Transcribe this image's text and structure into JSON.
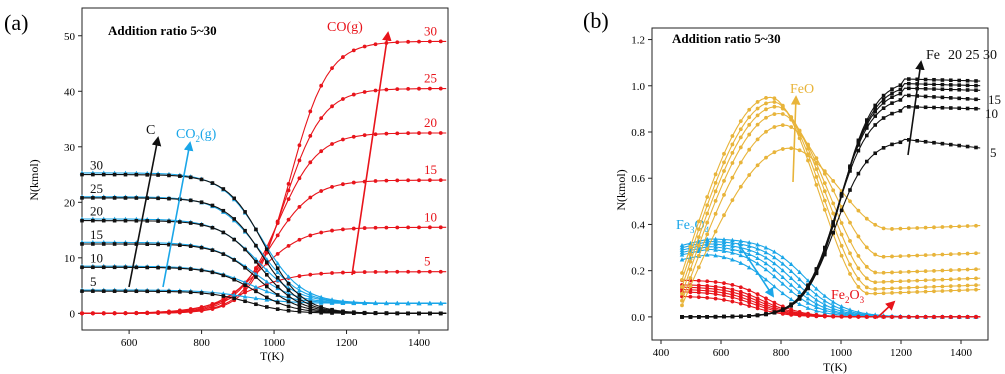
{
  "chart_data": [
    {
      "type": "line",
      "panel_label": "(a)",
      "annotation": "Addition ratio 5~30",
      "xlabel": "T(K)",
      "ylabel": "N(kmol)",
      "xlim": [
        470,
        1480
      ],
      "ylim": [
        -3,
        55
      ],
      "x_ticks": [
        600,
        800,
        1000,
        1200,
        1400
      ],
      "y_ticks": [
        0,
        10,
        20,
        30,
        40,
        50
      ],
      "grid": false,
      "groups": [
        {
          "name": "CO(g)",
          "color": "#e8141b",
          "labels": [
            "5",
            "10",
            "15",
            "20",
            "25",
            "30"
          ],
          "series": [
            {
              "name": "5",
              "plateau": 7.5,
              "midpoint_K": 920,
              "width_K": 70
            },
            {
              "name": "10",
              "plateau": 15.5,
              "midpoint_K": 960,
              "width_K": 62
            },
            {
              "name": "15",
              "plateau": 24,
              "midpoint_K": 990,
              "width_K": 58
            },
            {
              "name": "20",
              "plateau": 32.5,
              "midpoint_K": 1010,
              "width_K": 55
            },
            {
              "name": "25",
              "plateau": 40.5,
              "midpoint_K": 1030,
              "width_K": 53
            },
            {
              "name": "30",
              "plateau": 49,
              "midpoint_K": 1045,
              "width_K": 52
            }
          ]
        },
        {
          "name": "CO2(g)",
          "color": "#1aa6e8",
          "labels": [
            "5",
            "10",
            "15",
            "20",
            "25",
            "30"
          ],
          "series": [
            {
              "name": "5",
              "start": 4.2,
              "end": 1.8,
              "midpoint_K": 920,
              "width_K": 60
            },
            {
              "name": "10",
              "start": 8.5,
              "end": 1.8,
              "midpoint_K": 935,
              "width_K": 60
            },
            {
              "name": "15",
              "start": 12.8,
              "end": 1.8,
              "midpoint_K": 945,
              "width_K": 58
            },
            {
              "name": "20",
              "start": 17,
              "end": 1.8,
              "midpoint_K": 955,
              "width_K": 57
            },
            {
              "name": "25",
              "start": 21,
              "end": 1.8,
              "midpoint_K": 960,
              "width_K": 56
            },
            {
              "name": "30",
              "start": 25.3,
              "end": 1.8,
              "midpoint_K": 965,
              "width_K": 55
            }
          ]
        },
        {
          "name": "C",
          "color": "#111111",
          "labels": [
            "5",
            "10",
            "15",
            "20",
            "25",
            "30"
          ],
          "series": [
            {
              "name": "5",
              "start": 4.0,
              "end": 0,
              "midpoint_K": 930,
              "width_K": 55
            },
            {
              "name": "10",
              "start": 8.3,
              "end": 0,
              "midpoint_K": 945,
              "width_K": 55
            },
            {
              "name": "15",
              "start": 12.5,
              "end": 0,
              "midpoint_K": 955,
              "width_K": 54
            },
            {
              "name": "20",
              "start": 16.7,
              "end": 0,
              "midpoint_K": 962,
              "width_K": 53
            },
            {
              "name": "25",
              "start": 20.8,
              "end": 0,
              "midpoint_K": 968,
              "width_K": 52
            },
            {
              "name": "30",
              "start": 25,
              "end": 0,
              "midpoint_K": 972,
              "width_K": 52
            }
          ]
        }
      ],
      "label_texts": {
        "co": "CO(g)",
        "co2_main": "CO",
        "co2_sub": "2",
        "co2_tail": "(g)",
        "c": "C"
      }
    },
    {
      "type": "line",
      "panel_label": "(b)",
      "annotation": "Addition ratio 5~30",
      "xlabel": "T(K)",
      "ylabel": "N(kmol)",
      "xlim": [
        370,
        1490
      ],
      "ylim": [
        -0.1,
        1.25
      ],
      "x_ticks": [
        400,
        600,
        800,
        1000,
        1200,
        1400
      ],
      "y_ticks": [
        0.0,
        0.2,
        0.4,
        0.6,
        0.8,
        1.0,
        1.2
      ],
      "grid": false,
      "groups": [
        {
          "name": "Fe",
          "color": "#111111",
          "labels": [
            "5",
            "10",
            "15",
            "20",
            "25",
            "30"
          ],
          "series": [
            {
              "name": "5",
              "plateau": 0.77,
              "end": 0.73,
              "midpoint_K": 980,
              "width_K": 55
            },
            {
              "name": "10",
              "plateau": 0.91,
              "end": 0.9,
              "midpoint_K": 985,
              "width_K": 55
            },
            {
              "name": "15",
              "plateau": 0.96,
              "end": 0.94,
              "midpoint_K": 990,
              "width_K": 55
            },
            {
              "name": "20",
              "plateau": 0.99,
              "end": 0.98,
              "midpoint_K": 995,
              "width_K": 55
            },
            {
              "name": "25",
              "plateau": 1.01,
              "end": 1.0,
              "midpoint_K": 998,
              "width_K": 55
            },
            {
              "name": "30",
              "plateau": 1.03,
              "end": 1.02,
              "midpoint_K": 1000,
              "width_K": 55
            }
          ]
        },
        {
          "name": "FeO",
          "color": "#e8b43a",
          "labels": [],
          "series": [
            {
              "name": "5",
              "peak": 0.73,
              "peak_K": 830,
              "start": 0.05,
              "end": 0.38
            },
            {
              "name": "10",
              "peak": 0.83,
              "peak_K": 810,
              "start": 0.07,
              "end": 0.26
            },
            {
              "name": "15",
              "peak": 0.88,
              "peak_K": 795,
              "start": 0.1,
              "end": 0.19
            },
            {
              "name": "20",
              "peak": 0.91,
              "peak_K": 785,
              "start": 0.13,
              "end": 0.15
            },
            {
              "name": "25",
              "peak": 0.93,
              "peak_K": 775,
              "start": 0.16,
              "end": 0.12
            },
            {
              "name": "30",
              "peak": 0.95,
              "peak_K": 765,
              "start": 0.19,
              "end": 0.1
            }
          ]
        },
        {
          "name": "Fe3O4",
          "color": "#1aa6e8",
          "labels": [],
          "series": [
            {
              "name": "5",
              "start": 0.25,
              "midpoint_K": 770,
              "width_K": 65
            },
            {
              "name": "10",
              "start": 0.27,
              "midpoint_K": 800,
              "width_K": 65
            },
            {
              "name": "15",
              "start": 0.28,
              "midpoint_K": 820,
              "width_K": 65
            },
            {
              "name": "20",
              "start": 0.29,
              "midpoint_K": 840,
              "width_K": 65
            },
            {
              "name": "25",
              "start": 0.3,
              "midpoint_K": 860,
              "width_K": 65
            },
            {
              "name": "30",
              "start": 0.31,
              "midpoint_K": 880,
              "width_K": 65
            }
          ]
        },
        {
          "name": "Fe2O3",
          "color": "#e8141b",
          "labels": [],
          "series": [
            {
              "name": "5",
              "start": 0.09,
              "midpoint_K": 700,
              "width_K": 60
            },
            {
              "name": "10",
              "start": 0.11,
              "midpoint_K": 710,
              "width_K": 60
            },
            {
              "name": "15",
              "start": 0.12,
              "midpoint_K": 720,
              "width_K": 60
            },
            {
              "name": "20",
              "start": 0.13,
              "midpoint_K": 730,
              "width_K": 60
            },
            {
              "name": "25",
              "start": 0.14,
              "midpoint_K": 740,
              "width_K": 60
            },
            {
              "name": "30",
              "start": 0.16,
              "midpoint_K": 750,
              "width_K": 60
            }
          ]
        }
      ],
      "label_texts": {
        "fe": "Fe",
        "fe_ratios": "20 25 30",
        "fe_15": "15",
        "fe_10": "10",
        "fe_5": "5",
        "feo": "FeO",
        "fe3o4_a": "Fe",
        "fe3o4_b": "3",
        "fe3o4_c": "O",
        "fe3o4_d": "4",
        "fe2o3_a": "Fe",
        "fe2o3_b": "2",
        "fe2o3_c": "O",
        "fe2o3_d": "3"
      }
    }
  ]
}
